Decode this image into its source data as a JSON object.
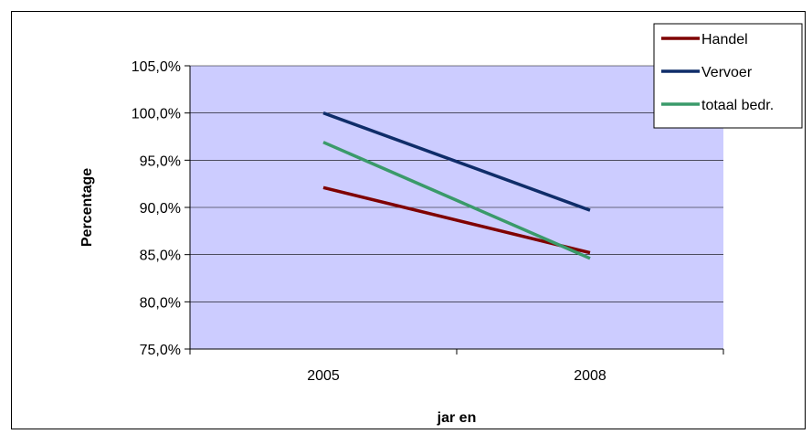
{
  "chart_data": {
    "type": "line",
    "categories": [
      "2005",
      "2008"
    ],
    "series": [
      {
        "name": "Handel",
        "values": [
          92.1,
          85.2
        ],
        "color": "#7f0000"
      },
      {
        "name": "Vervoer",
        "values": [
          100.0,
          89.7
        ],
        "color": "#0f2d69"
      },
      {
        "name": "totaal bedr.",
        "values": [
          96.9,
          84.6
        ],
        "color": "#3a9a6a"
      }
    ],
    "title": "",
    "xlabel": "jar en",
    "ylabel": "Percentage",
    "ylim": [
      75,
      105
    ],
    "ytick_labels": [
      "105,0%",
      "100,0%",
      "95,0%",
      "90,0%",
      "85,0%",
      "80,0%",
      "75,0%"
    ],
    "plot_background": "#ccccff",
    "grid": true,
    "legend": "top-right"
  }
}
